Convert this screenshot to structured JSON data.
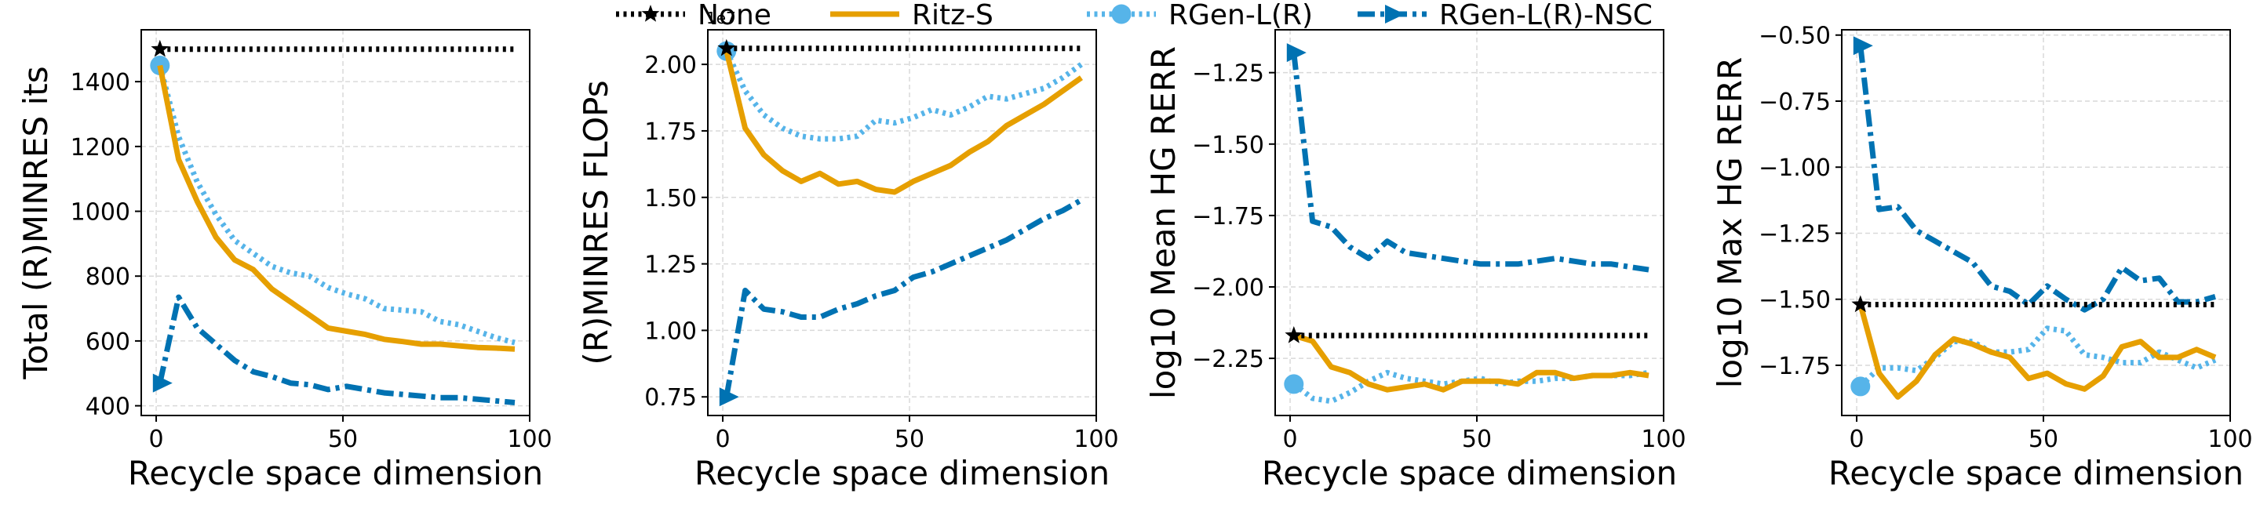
{
  "legend": [
    {
      "name": "None",
      "color": "#000000",
      "dash": "dotted",
      "marker": "star"
    },
    {
      "name": "Ritz-S",
      "color": "#E69F00",
      "dash": "solid",
      "marker": "none"
    },
    {
      "name": "RGen-L(R)",
      "color": "#56B4E9",
      "dash": "dotted",
      "marker": "circle"
    },
    {
      "name": "RGen-L(R)-NSC",
      "color": "#0072B2",
      "dash": "dashdot",
      "marker": "triangle"
    }
  ],
  "chart_data": [
    {
      "type": "line",
      "xlabel": "Recycle space dimension",
      "ylabel": "Total (R)MINRES its",
      "xlim": [
        -4,
        100
      ],
      "ylim": [
        370,
        1560
      ],
      "xticks": [
        0,
        50,
        100
      ],
      "yticks": [
        400,
        600,
        800,
        1000,
        1200,
        1400
      ],
      "ytick_labels": [
        "400",
        "600",
        "800",
        "1000",
        "1200",
        "1400"
      ],
      "offset_label": "",
      "grid": true,
      "series": [
        {
          "name": "None",
          "x": [
            1,
            96
          ],
          "y": [
            1500,
            1500
          ],
          "marker_point": [
            1,
            1500
          ]
        },
        {
          "name": "Ritz-S",
          "x": [
            1,
            6,
            11,
            16,
            21,
            26,
            31,
            36,
            41,
            46,
            51,
            56,
            61,
            66,
            71,
            76,
            81,
            86,
            91,
            96
          ],
          "y": [
            1450,
            1160,
            1030,
            920,
            850,
            820,
            760,
            720,
            680,
            640,
            630,
            620,
            605,
            598,
            590,
            590,
            585,
            580,
            578,
            575
          ]
        },
        {
          "name": "RGen-L(R)",
          "x": [
            1,
            6,
            11,
            16,
            21,
            26,
            31,
            36,
            41,
            46,
            51,
            56,
            61,
            66,
            71,
            76,
            81,
            86,
            91,
            96
          ],
          "y": [
            1450,
            1230,
            1090,
            990,
            910,
            870,
            830,
            810,
            800,
            765,
            745,
            730,
            700,
            695,
            690,
            660,
            650,
            630,
            610,
            595
          ],
          "marker_point": [
            1,
            1450
          ]
        },
        {
          "name": "RGen-L(R)-NSC",
          "x": [
            1,
            6,
            11,
            16,
            21,
            26,
            31,
            36,
            41,
            46,
            51,
            56,
            61,
            66,
            71,
            76,
            81,
            86,
            91,
            96
          ],
          "y": [
            470,
            735,
            640,
            590,
            540,
            505,
            490,
            470,
            465,
            450,
            460,
            450,
            440,
            435,
            430,
            425,
            425,
            420,
            415,
            410
          ],
          "marker_point": [
            1,
            470
          ]
        }
      ]
    },
    {
      "type": "line",
      "xlabel": "Recycle space dimension",
      "ylabel": "(R)MINRES FLOPs",
      "xlim": [
        -4,
        100
      ],
      "ylim": [
        0.68,
        2.13
      ],
      "xticks": [
        0,
        50,
        100
      ],
      "yticks": [
        0.75,
        1.0,
        1.25,
        1.5,
        1.75,
        2.0
      ],
      "ytick_labels": [
        "0.75",
        "1.00",
        "1.25",
        "1.50",
        "1.75",
        "2.00"
      ],
      "offset_label": "1e7",
      "grid": true,
      "series": [
        {
          "name": "None",
          "x": [
            1,
            96
          ],
          "y": [
            2.06,
            2.06
          ],
          "marker_point": [
            1,
            2.06
          ]
        },
        {
          "name": "Ritz-S",
          "x": [
            1,
            6,
            11,
            16,
            21,
            26,
            31,
            36,
            41,
            46,
            51,
            56,
            61,
            66,
            71,
            76,
            81,
            86,
            91,
            96
          ],
          "y": [
            2.05,
            1.76,
            1.66,
            1.6,
            1.56,
            1.59,
            1.55,
            1.56,
            1.53,
            1.52,
            1.56,
            1.59,
            1.62,
            1.67,
            1.71,
            1.77,
            1.81,
            1.85,
            1.9,
            1.95
          ]
        },
        {
          "name": "RGen-L(R)",
          "x": [
            1,
            6,
            11,
            16,
            21,
            26,
            31,
            36,
            41,
            46,
            51,
            56,
            61,
            66,
            71,
            76,
            81,
            86,
            91,
            96
          ],
          "y": [
            2.05,
            1.9,
            1.81,
            1.76,
            1.73,
            1.72,
            1.72,
            1.73,
            1.79,
            1.78,
            1.8,
            1.83,
            1.81,
            1.84,
            1.88,
            1.87,
            1.89,
            1.91,
            1.95,
            2.0
          ],
          "marker_point": [
            1,
            2.05
          ]
        },
        {
          "name": "RGen-L(R)-NSC",
          "x": [
            1,
            6,
            11,
            16,
            21,
            26,
            31,
            36,
            41,
            46,
            51,
            56,
            61,
            66,
            71,
            76,
            81,
            86,
            91,
            96
          ],
          "y": [
            0.75,
            1.15,
            1.08,
            1.07,
            1.05,
            1.05,
            1.08,
            1.1,
            1.13,
            1.15,
            1.2,
            1.22,
            1.25,
            1.28,
            1.31,
            1.34,
            1.38,
            1.42,
            1.45,
            1.49
          ],
          "marker_point": [
            1,
            0.75
          ]
        }
      ]
    },
    {
      "type": "line",
      "xlabel": "Recycle space dimension",
      "ylabel": "log10 Mean HG RERR",
      "xlim": [
        -4,
        100
      ],
      "ylim": [
        -2.45,
        -1.1
      ],
      "xticks": [
        0,
        50,
        100
      ],
      "yticks": [
        -2.25,
        -2.0,
        -1.75,
        -1.5,
        -1.25
      ],
      "ytick_labels": [
        "−2.25",
        "−2.00",
        "−1.75",
        "−1.50",
        "−1.25"
      ],
      "offset_label": "",
      "grid": true,
      "series": [
        {
          "name": "None",
          "x": [
            1,
            96
          ],
          "y": [
            -2.17,
            -2.17
          ],
          "marker_point": [
            1,
            -2.17
          ]
        },
        {
          "name": "Ritz-S",
          "x": [
            1,
            6,
            11,
            16,
            21,
            26,
            31,
            36,
            41,
            46,
            51,
            56,
            61,
            66,
            71,
            76,
            81,
            86,
            91,
            96
          ],
          "y": [
            -2.17,
            -2.19,
            -2.28,
            -2.3,
            -2.34,
            -2.36,
            -2.35,
            -2.34,
            -2.36,
            -2.33,
            -2.33,
            -2.33,
            -2.34,
            -2.3,
            -2.3,
            -2.32,
            -2.31,
            -2.31,
            -2.3,
            -2.31
          ]
        },
        {
          "name": "RGen-L(R)",
          "x": [
            1,
            6,
            11,
            16,
            21,
            26,
            31,
            36,
            41,
            46,
            51,
            56,
            61,
            66,
            71,
            76,
            81,
            86,
            91,
            96
          ],
          "y": [
            -2.34,
            -2.39,
            -2.4,
            -2.37,
            -2.33,
            -2.3,
            -2.32,
            -2.33,
            -2.34,
            -2.33,
            -2.32,
            -2.34,
            -2.33,
            -2.33,
            -2.32,
            -2.32,
            -2.31,
            -2.31,
            -2.31,
            -2.3
          ],
          "marker_point": [
            1,
            -2.34
          ]
        },
        {
          "name": "RGen-L(R)-NSC",
          "x": [
            1,
            6,
            11,
            16,
            21,
            26,
            31,
            36,
            41,
            46,
            51,
            56,
            61,
            66,
            71,
            76,
            81,
            86,
            91,
            96
          ],
          "y": [
            -1.18,
            -1.77,
            -1.79,
            -1.86,
            -1.9,
            -1.84,
            -1.88,
            -1.89,
            -1.9,
            -1.91,
            -1.92,
            -1.92,
            -1.92,
            -1.91,
            -1.9,
            -1.91,
            -1.92,
            -1.92,
            -1.93,
            -1.94
          ],
          "marker_point": [
            1,
            -1.18
          ]
        }
      ]
    },
    {
      "type": "line",
      "xlabel": "Recycle space dimension",
      "ylabel": "log10 Max HG RERR",
      "xlim": [
        -4,
        100
      ],
      "ylim": [
        -1.94,
        -0.48
      ],
      "xticks": [
        0,
        50,
        100
      ],
      "yticks": [
        -1.75,
        -1.5,
        -1.25,
        -1.0,
        -0.75,
        -0.5
      ],
      "ytick_labels": [
        "−1.75",
        "−1.50",
        "−1.25",
        "−1.00",
        "−0.75",
        "−0.50"
      ],
      "offset_label": "",
      "grid": true,
      "series": [
        {
          "name": "None",
          "x": [
            1,
            96
          ],
          "y": [
            -1.52,
            -1.52
          ],
          "marker_point": [
            1,
            -1.52
          ]
        },
        {
          "name": "Ritz-S",
          "x": [
            1,
            6,
            11,
            16,
            21,
            26,
            31,
            36,
            41,
            46,
            51,
            56,
            61,
            66,
            71,
            76,
            81,
            86,
            91,
            96
          ],
          "y": [
            -1.52,
            -1.78,
            -1.87,
            -1.81,
            -1.71,
            -1.65,
            -1.67,
            -1.7,
            -1.72,
            -1.8,
            -1.78,
            -1.82,
            -1.84,
            -1.79,
            -1.68,
            -1.66,
            -1.72,
            -1.72,
            -1.69,
            -1.72
          ]
        },
        {
          "name": "RGen-L(R)",
          "x": [
            1,
            6,
            11,
            16,
            21,
            26,
            31,
            36,
            41,
            46,
            51,
            56,
            61,
            66,
            71,
            76,
            81,
            86,
            91,
            96
          ],
          "y": [
            -1.83,
            -1.76,
            -1.76,
            -1.77,
            -1.72,
            -1.66,
            -1.66,
            -1.7,
            -1.7,
            -1.69,
            -1.61,
            -1.62,
            -1.71,
            -1.72,
            -1.74,
            -1.74,
            -1.7,
            -1.73,
            -1.76,
            -1.73
          ],
          "marker_point": [
            1,
            -1.83
          ]
        },
        {
          "name": "RGen-L(R)-NSC",
          "x": [
            1,
            6,
            11,
            16,
            21,
            26,
            31,
            36,
            41,
            46,
            51,
            56,
            61,
            66,
            71,
            76,
            81,
            86,
            91,
            96
          ],
          "y": [
            -0.54,
            -1.16,
            -1.15,
            -1.24,
            -1.28,
            -1.32,
            -1.36,
            -1.45,
            -1.47,
            -1.52,
            -1.45,
            -1.5,
            -1.54,
            -1.5,
            -1.38,
            -1.43,
            -1.42,
            -1.51,
            -1.51,
            -1.49
          ],
          "marker_point": [
            1,
            -0.54
          ]
        }
      ]
    }
  ]
}
